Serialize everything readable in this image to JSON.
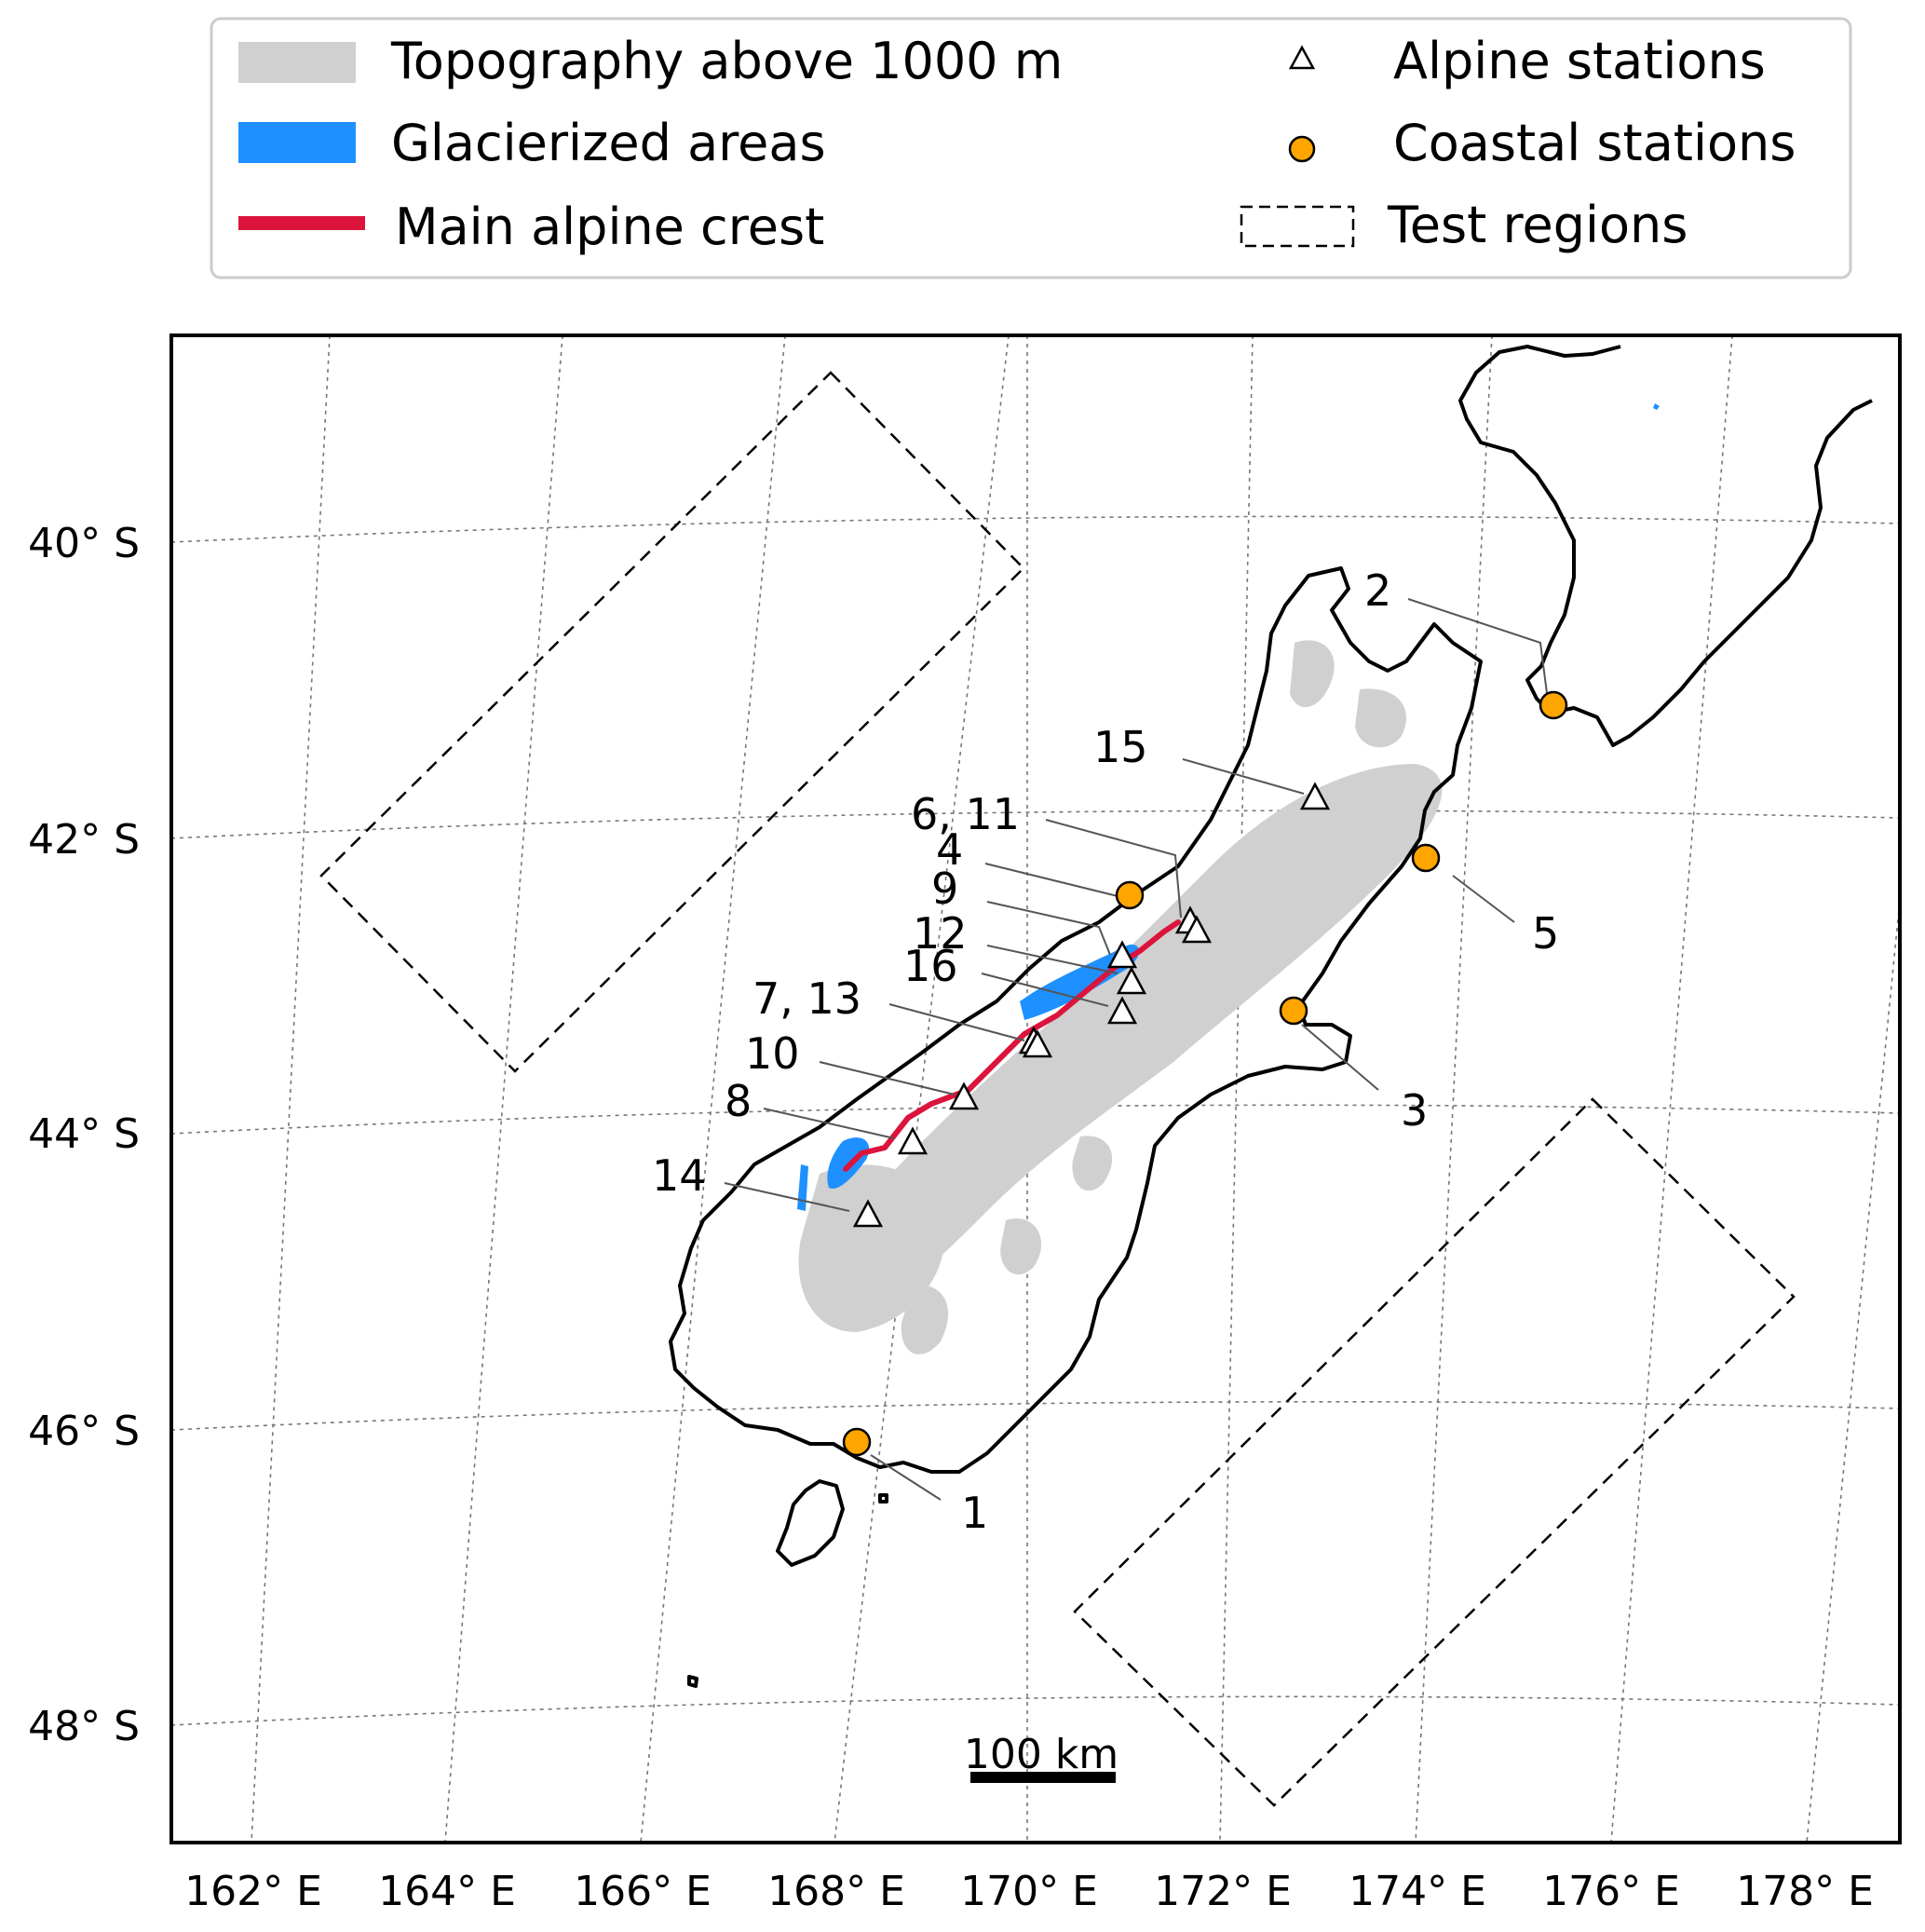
{
  "legend": {
    "items": [
      {
        "key": "topography",
        "label": "Topography above 1000 m",
        "color": "#d0d0d0"
      },
      {
        "key": "glacier",
        "label": "Glacierized areas",
        "color": "#1e90ff"
      },
      {
        "key": "crest",
        "label": "Main alpine crest",
        "color": "#dc143c"
      },
      {
        "key": "alpine",
        "label": "Alpine stations",
        "symbol": "triangle-icon"
      },
      {
        "key": "coastal",
        "label": "Coastal stations",
        "symbol": "circle-icon",
        "color": "#ffa500"
      },
      {
        "key": "test",
        "label": "Test regions",
        "symbol": "dashed-box-icon"
      }
    ]
  },
  "axes": {
    "lat_labels": [
      "40° S",
      "42° S",
      "44° S",
      "46° S",
      "48° S"
    ],
    "lon_labels": [
      "162° E",
      "164° E",
      "166° E",
      "168° E",
      "170° E",
      "172° E",
      "174° E",
      "176° E",
      "178° E"
    ]
  },
  "stations": {
    "alpine": [
      {
        "id": "15"
      },
      {
        "id": "6, 11"
      },
      {
        "id": "9"
      },
      {
        "id": "12"
      },
      {
        "id": "16"
      },
      {
        "id": "7, 13"
      },
      {
        "id": "10"
      },
      {
        "id": "8"
      },
      {
        "id": "14"
      }
    ],
    "coastal": [
      {
        "id": "2"
      },
      {
        "id": "4"
      },
      {
        "id": "5"
      },
      {
        "id": "3"
      },
      {
        "id": "1"
      }
    ]
  },
  "scale_bar": {
    "label": "100 km"
  }
}
